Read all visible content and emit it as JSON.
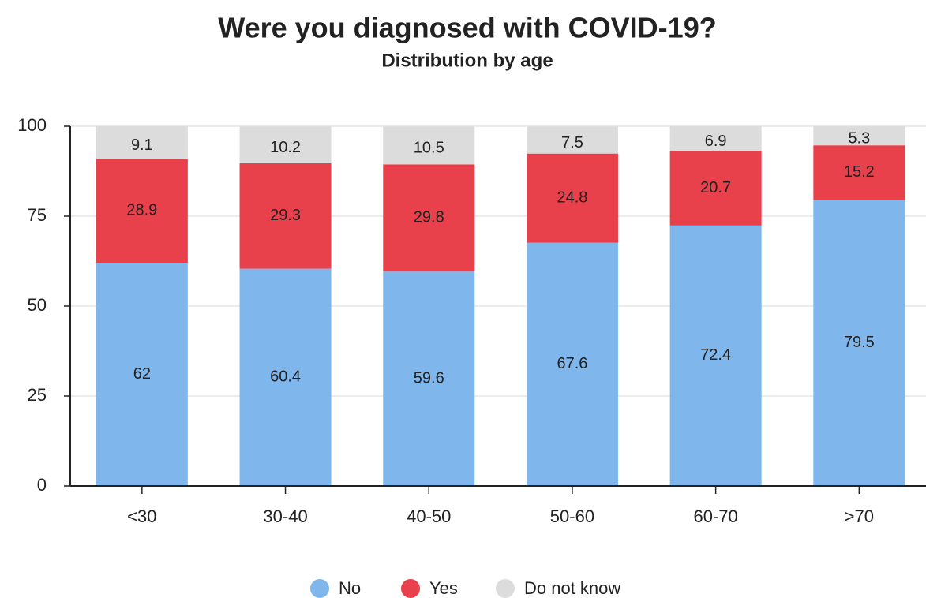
{
  "chart_data": {
    "type": "stacked_bar",
    "title": "Were you diagnosed with COVID-19?",
    "subtitle": "Distribution by age",
    "categories": [
      "<30",
      "30-40",
      "40-50",
      "50-60",
      "60-70",
      ">70"
    ],
    "series": [
      {
        "name": "No",
        "color": "#7fb6ec",
        "values": [
          62,
          60.4,
          59.6,
          67.6,
          72.4,
          79.5
        ]
      },
      {
        "name": "Yes",
        "color": "#e8414b",
        "values": [
          28.9,
          29.3,
          29.8,
          24.8,
          20.7,
          15.2
        ]
      },
      {
        "name": "Do not know",
        "color": "#dcdcdc",
        "values": [
          9.1,
          10.2,
          10.5,
          7.5,
          6.9,
          5.3
        ]
      }
    ],
    "ylim": [
      0,
      100
    ],
    "yticks": [
      0,
      25,
      50,
      75,
      100
    ],
    "grid": true,
    "legend": "bottom"
  }
}
